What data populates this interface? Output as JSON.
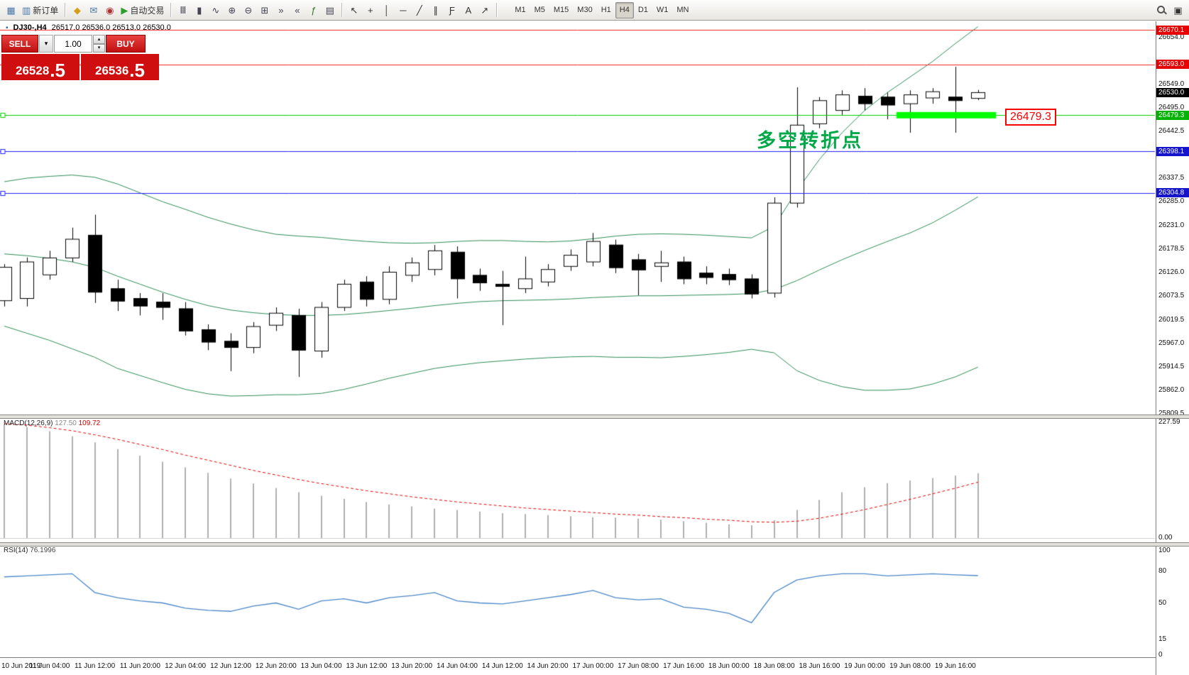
{
  "toolbar": {
    "groups": [
      {
        "items": [
          {
            "name": "charts-menu",
            "glyph": "▦",
            "color": "#4a76a8"
          },
          {
            "name": "new-order",
            "glyph": "▥",
            "color": "#4a76a8",
            "label": "新订单"
          }
        ]
      },
      {
        "items": [
          {
            "name": "alerts",
            "glyph": "◆",
            "color": "#d4a017"
          },
          {
            "name": "mailbox",
            "glyph": "✉",
            "color": "#4a76a8"
          },
          {
            "name": "market",
            "glyph": "◉",
            "color": "#b03030"
          },
          {
            "name": "autotrading",
            "glyph": "▶",
            "color": "#2e9e2e",
            "label": "自动交易"
          }
        ]
      },
      {
        "items": [
          {
            "name": "bar-chart",
            "glyph": "Ⅲ",
            "color": "#445"
          },
          {
            "name": "candlestick-chart",
            "glyph": "▮",
            "color": "#445"
          },
          {
            "name": "line-chart",
            "glyph": "∿",
            "color": "#445"
          },
          {
            "name": "zoom-in",
            "glyph": "⊕",
            "color": "#445"
          },
          {
            "name": "zoom-out",
            "glyph": "⊖",
            "color": "#445"
          },
          {
            "name": "tile-windows",
            "glyph": "⊞",
            "color": "#445"
          },
          {
            "name": "auto-scroll",
            "glyph": "»",
            "color": "#445"
          },
          {
            "name": "chart-shift",
            "glyph": "«",
            "color": "#445"
          },
          {
            "name": "indicators",
            "glyph": "ƒ",
            "color": "#2a7a2a"
          },
          {
            "name": "templates",
            "glyph": "▤",
            "color": "#445"
          }
        ]
      },
      {
        "items": [
          {
            "name": "cursor",
            "glyph": "↖",
            "color": "#333"
          },
          {
            "name": "crosshair",
            "glyph": "+",
            "color": "#333"
          },
          {
            "name": "vertical-line",
            "glyph": "│",
            "color": "#333"
          },
          {
            "name": "horizontal-line",
            "glyph": "─",
            "color": "#333"
          },
          {
            "name": "trendline",
            "glyph": "╱",
            "color": "#333"
          },
          {
            "name": "channel",
            "glyph": "∥",
            "color": "#333"
          },
          {
            "name": "fibonacci",
            "glyph": "Ƒ",
            "color": "#333"
          },
          {
            "name": "text",
            "glyph": "A",
            "color": "#333"
          },
          {
            "name": "arrows",
            "glyph": "↗",
            "color": "#333"
          }
        ]
      }
    ],
    "timeframes": [
      "M1",
      "M5",
      "M15",
      "M30",
      "H1",
      "H4",
      "D1",
      "W1",
      "MN"
    ],
    "active_timeframe": "H4",
    "right_items": [
      {
        "name": "search",
        "glyph": ""
      },
      {
        "name": "panels",
        "glyph": "▣"
      }
    ]
  },
  "chart": {
    "title_icon": "▪",
    "title": "DJ30-,H4",
    "ohlc": "26517.0 26536.0 26513.0 26530.0",
    "annotation": "多空转折点",
    "price_tag": "26479.3"
  },
  "one_click": {
    "sell_label": "SELL",
    "buy_label": "BUY",
    "dropdown_glyph": "▾",
    "up_glyph": "▴",
    "down_glyph": "▾",
    "volume": "1.00",
    "sell_price_main": "26528",
    "sell_price_frac": ".5",
    "buy_price_main": "26536",
    "buy_price_frac": ".5"
  },
  "indicators": {
    "macd_name": "MACD(12,26,9)",
    "macd_main": "127.50",
    "macd_signal": "109.72",
    "rsi_name": "RSI(14)",
    "rsi_value": "76.1996"
  },
  "price_axis": {
    "labels": [
      {
        "v": 26654.0,
        "label": "26654.0"
      },
      {
        "v": 26549.0,
        "label": "26549.0"
      },
      {
        "v": 26495.0,
        "label": "26495.0"
      },
      {
        "v": 26442.5,
        "label": "26442.5"
      },
      {
        "v": 26390.0,
        "label": "26390.0"
      },
      {
        "v": 26337.5,
        "label": "26337.5"
      },
      {
        "v": 26285.0,
        "label": "26285.0"
      },
      {
        "v": 26231.0,
        "label": "26231.0"
      },
      {
        "v": 26178.5,
        "label": "26178.5"
      },
      {
        "v": 26126.0,
        "label": "26126.0"
      },
      {
        "v": 26073.5,
        "label": "26073.5"
      },
      {
        "v": 26019.5,
        "label": "26019.5"
      },
      {
        "v": 25967.0,
        "label": "25967.0"
      },
      {
        "v": 25914.5,
        "label": "25914.5"
      },
      {
        "v": 25862.0,
        "label": "25862.0"
      },
      {
        "v": 25809.5,
        "label": "25809.5"
      }
    ],
    "badges": [
      {
        "name": "resistance-1",
        "v": 26670.1,
        "label": "26670.1",
        "bg": "#e60000"
      },
      {
        "name": "resistance-2",
        "v": 26593.0,
        "label": "26593.0",
        "bg": "#e60000"
      },
      {
        "name": "current-price",
        "v": 26530.0,
        "label": "26530.0",
        "bg": "#000000"
      },
      {
        "name": "support-green",
        "v": 26479.3,
        "label": "26479.3",
        "bg": "#00b300"
      },
      {
        "name": "support-blue-1",
        "v": 26398.1,
        "label": "26398.1",
        "bg": "#1414cc"
      },
      {
        "name": "support-blue-2",
        "v": 26304.8,
        "label": "26304.8",
        "bg": "#1414cc"
      }
    ]
  },
  "macd_axis": [
    {
      "v": 227.59,
      "label": "227.59"
    },
    {
      "v": 0,
      "label": "0.00"
    }
  ],
  "rsi_axis": [
    {
      "v": 100,
      "label": "100"
    },
    {
      "v": 80,
      "label": "80"
    },
    {
      "v": 50,
      "label": "50"
    },
    {
      "v": 15,
      "label": "15"
    },
    {
      "v": 0,
      "label": "0"
    }
  ],
  "time_axis": [
    {
      "label": "10 Jun 2019",
      "i": 0
    },
    {
      "label": "11 Jun 04:00",
      "i": 2
    },
    {
      "label": "11 Jun 12:00",
      "i": 4
    },
    {
      "label": "11 Jun 20:00",
      "i": 6
    },
    {
      "label": "12 Jun 04:00",
      "i": 8
    },
    {
      "label": "12 Jun 12:00",
      "i": 10
    },
    {
      "label": "12 Jun 20:00",
      "i": 12
    },
    {
      "label": "13 Jun 04:00",
      "i": 14
    },
    {
      "label": "13 Jun 12:00",
      "i": 16
    },
    {
      "label": "13 Jun 20:00",
      "i": 18
    },
    {
      "label": "14 Jun 04:00",
      "i": 20
    },
    {
      "label": "14 Jun 12:00",
      "i": 22
    },
    {
      "label": "14 Jun 20:00",
      "i": 24
    },
    {
      "label": "17 Jun 00:00",
      "i": 26
    },
    {
      "label": "17 Jun 08:00",
      "i": 28
    },
    {
      "label": "17 Jun 16:00",
      "i": 30
    },
    {
      "label": "18 Jun 00:00",
      "i": 32
    },
    {
      "label": "18 Jun 08:00",
      "i": 34
    },
    {
      "label": "18 Jun 16:00",
      "i": 36
    },
    {
      "label": "19 Jun 00:00",
      "i": 38
    },
    {
      "label": "19 Jun 08:00",
      "i": 40
    },
    {
      "label": "19 Jun 16:00",
      "i": 42
    }
  ],
  "chart_data": {
    "type": "candlestick",
    "symbol": "DJ30-",
    "timeframe": "H4",
    "ohlc_current": [
      26517.0,
      26536.0,
      26513.0,
      26530.0
    ],
    "candles": [
      [
        26063,
        26145,
        26050,
        26138
      ],
      [
        26068,
        26160,
        26050,
        26150
      ],
      [
        26121,
        26175,
        26110,
        26159
      ],
      [
        26159,
        26227,
        26150,
        26201
      ],
      [
        26210,
        26256,
        26058,
        26082
      ],
      [
        26090,
        26110,
        26040,
        26062
      ],
      [
        26068,
        26080,
        26030,
        26051
      ],
      [
        26060,
        26080,
        26020,
        26048
      ],
      [
        26045,
        26060,
        25985,
        25995
      ],
      [
        25998,
        26010,
        25952,
        25970
      ],
      [
        25972,
        25990,
        25905,
        25958
      ],
      [
        25958,
        26015,
        25945,
        26005
      ],
      [
        26008,
        26048,
        25995,
        26035
      ],
      [
        26030,
        26045,
        25892,
        25952
      ],
      [
        25950,
        26060,
        25935,
        26048
      ],
      [
        26048,
        26110,
        26040,
        26100
      ],
      [
        26105,
        26118,
        26050,
        26066
      ],
      [
        26066,
        26140,
        26055,
        26127
      ],
      [
        26120,
        26160,
        26105,
        26148
      ],
      [
        26133,
        26188,
        26120,
        26175
      ],
      [
        26172,
        26185,
        26068,
        26112
      ],
      [
        26120,
        26135,
        26085,
        26103
      ],
      [
        26100,
        26130,
        26008,
        26095
      ],
      [
        26090,
        26162,
        26080,
        26112
      ],
      [
        26105,
        26145,
        26095,
        26133
      ],
      [
        26140,
        26178,
        26130,
        26165
      ],
      [
        26150,
        26215,
        26140,
        26196
      ],
      [
        26188,
        26200,
        26125,
        26137
      ],
      [
        26155,
        26168,
        26075,
        26132
      ],
      [
        26140,
        26175,
        26105,
        26148
      ],
      [
        26150,
        26162,
        26100,
        26112
      ],
      [
        26125,
        26140,
        26100,
        26115
      ],
      [
        26122,
        26135,
        26098,
        26110
      ],
      [
        26112,
        26122,
        26068,
        26078
      ],
      [
        26080,
        26295,
        26070,
        26282
      ],
      [
        26282,
        26542,
        26272,
        26457
      ],
      [
        26460,
        26520,
        26450,
        26512
      ],
      [
        26490,
        26535,
        26480,
        26525
      ],
      [
        26522,
        26540,
        26490,
        26505
      ],
      [
        26520,
        26530,
        26470,
        26502
      ],
      [
        26505,
        26535,
        26440,
        26525
      ],
      [
        26518,
        26540,
        26505,
        26532
      ],
      [
        26520,
        26588,
        26440,
        26512
      ],
      [
        26517,
        26536,
        26513,
        26530
      ]
    ],
    "bollinger": {
      "upper": [
        26330,
        26338,
        26342,
        26345,
        26340,
        26325,
        26305,
        26285,
        26268,
        26250,
        26235,
        26222,
        26212,
        26208,
        26205,
        26200,
        26196,
        26193,
        26192,
        26193,
        26196,
        26198,
        26198,
        26196,
        26195,
        26197,
        26202,
        26208,
        26212,
        26213,
        26212,
        26210,
        26207,
        26204,
        26230,
        26310,
        26380,
        26440,
        26490,
        26530,
        26565,
        26600,
        26640,
        26678
      ],
      "middle": [
        26168,
        26164,
        26158,
        26150,
        26138,
        26118,
        26100,
        26082,
        26066,
        26052,
        26042,
        26036,
        26032,
        26030,
        26030,
        26032,
        26036,
        26041,
        26046,
        26052,
        26057,
        26061,
        26063,
        26064,
        26065,
        26067,
        26070,
        26072,
        26074,
        26074,
        26075,
        26076,
        26077,
        26079,
        26088,
        26108,
        26132,
        26155,
        26176,
        26196,
        26215,
        26238,
        26266,
        26296
      ],
      "lower": [
        26006,
        25990,
        25974,
        25955,
        25936,
        25911,
        25895,
        25879,
        25864,
        25854,
        25849,
        25850,
        25852,
        25852,
        25855,
        25864,
        25876,
        25889,
        25900,
        25911,
        25918,
        25924,
        25928,
        25932,
        25935,
        25937,
        25938,
        25936,
        25936,
        25935,
        25938,
        25942,
        25947,
        25954,
        25946,
        25906,
        25884,
        25870,
        25862,
        25862,
        25865,
        25876,
        25892,
        25914
      ]
    },
    "macd": {
      "histogram": [
        223,
        218,
        210,
        200,
        188,
        175,
        162,
        150,
        139,
        128,
        117,
        107,
        98,
        90,
        83,
        77,
        71,
        66,
        62,
        58,
        55,
        52,
        49,
        47,
        45,
        43,
        41,
        40,
        38,
        36,
        33,
        30,
        27,
        25,
        35,
        55,
        75,
        90,
        100,
        108,
        113,
        118,
        123,
        127.5
      ],
      "signal": [
        225,
        222,
        217,
        211,
        203,
        194,
        184,
        174,
        163,
        153,
        143,
        133,
        124,
        115,
        107,
        100,
        93,
        87,
        81,
        76,
        71,
        67,
        63,
        59,
        56,
        53,
        50,
        47,
        45,
        42,
        40,
        37,
        35,
        32,
        31,
        33,
        39,
        47,
        56,
        66,
        76,
        87,
        98,
        109.72
      ]
    },
    "rsi": [
      75,
      76,
      77,
      78,
      60,
      55,
      52,
      50,
      45,
      43,
      42,
      47,
      50,
      44,
      52,
      54,
      50,
      55,
      57,
      60,
      52,
      50,
      49,
      52,
      55,
      58,
      62,
      55,
      53,
      54,
      46,
      44,
      40,
      31,
      60,
      72,
      76,
      78,
      78,
      76,
      77,
      78,
      77,
      76.2
    ],
    "hlines": [
      {
        "price": 26670.1,
        "color": "#ff2020",
        "handle": false
      },
      {
        "price": 26593.0,
        "color": "#ff2020",
        "handle": false
      },
      {
        "price": 26479.3,
        "color": "#00cc00",
        "handle": true
      },
      {
        "price": 26398.1,
        "color": "#2020ff",
        "handle": true
      },
      {
        "price": 26304.8,
        "color": "#2020ff",
        "handle": true
      }
    ],
    "green_zone": {
      "price": 26479.3,
      "from_i": 39.4,
      "to_i": 43.8,
      "color": "#00ff00",
      "thickness": 9
    }
  }
}
